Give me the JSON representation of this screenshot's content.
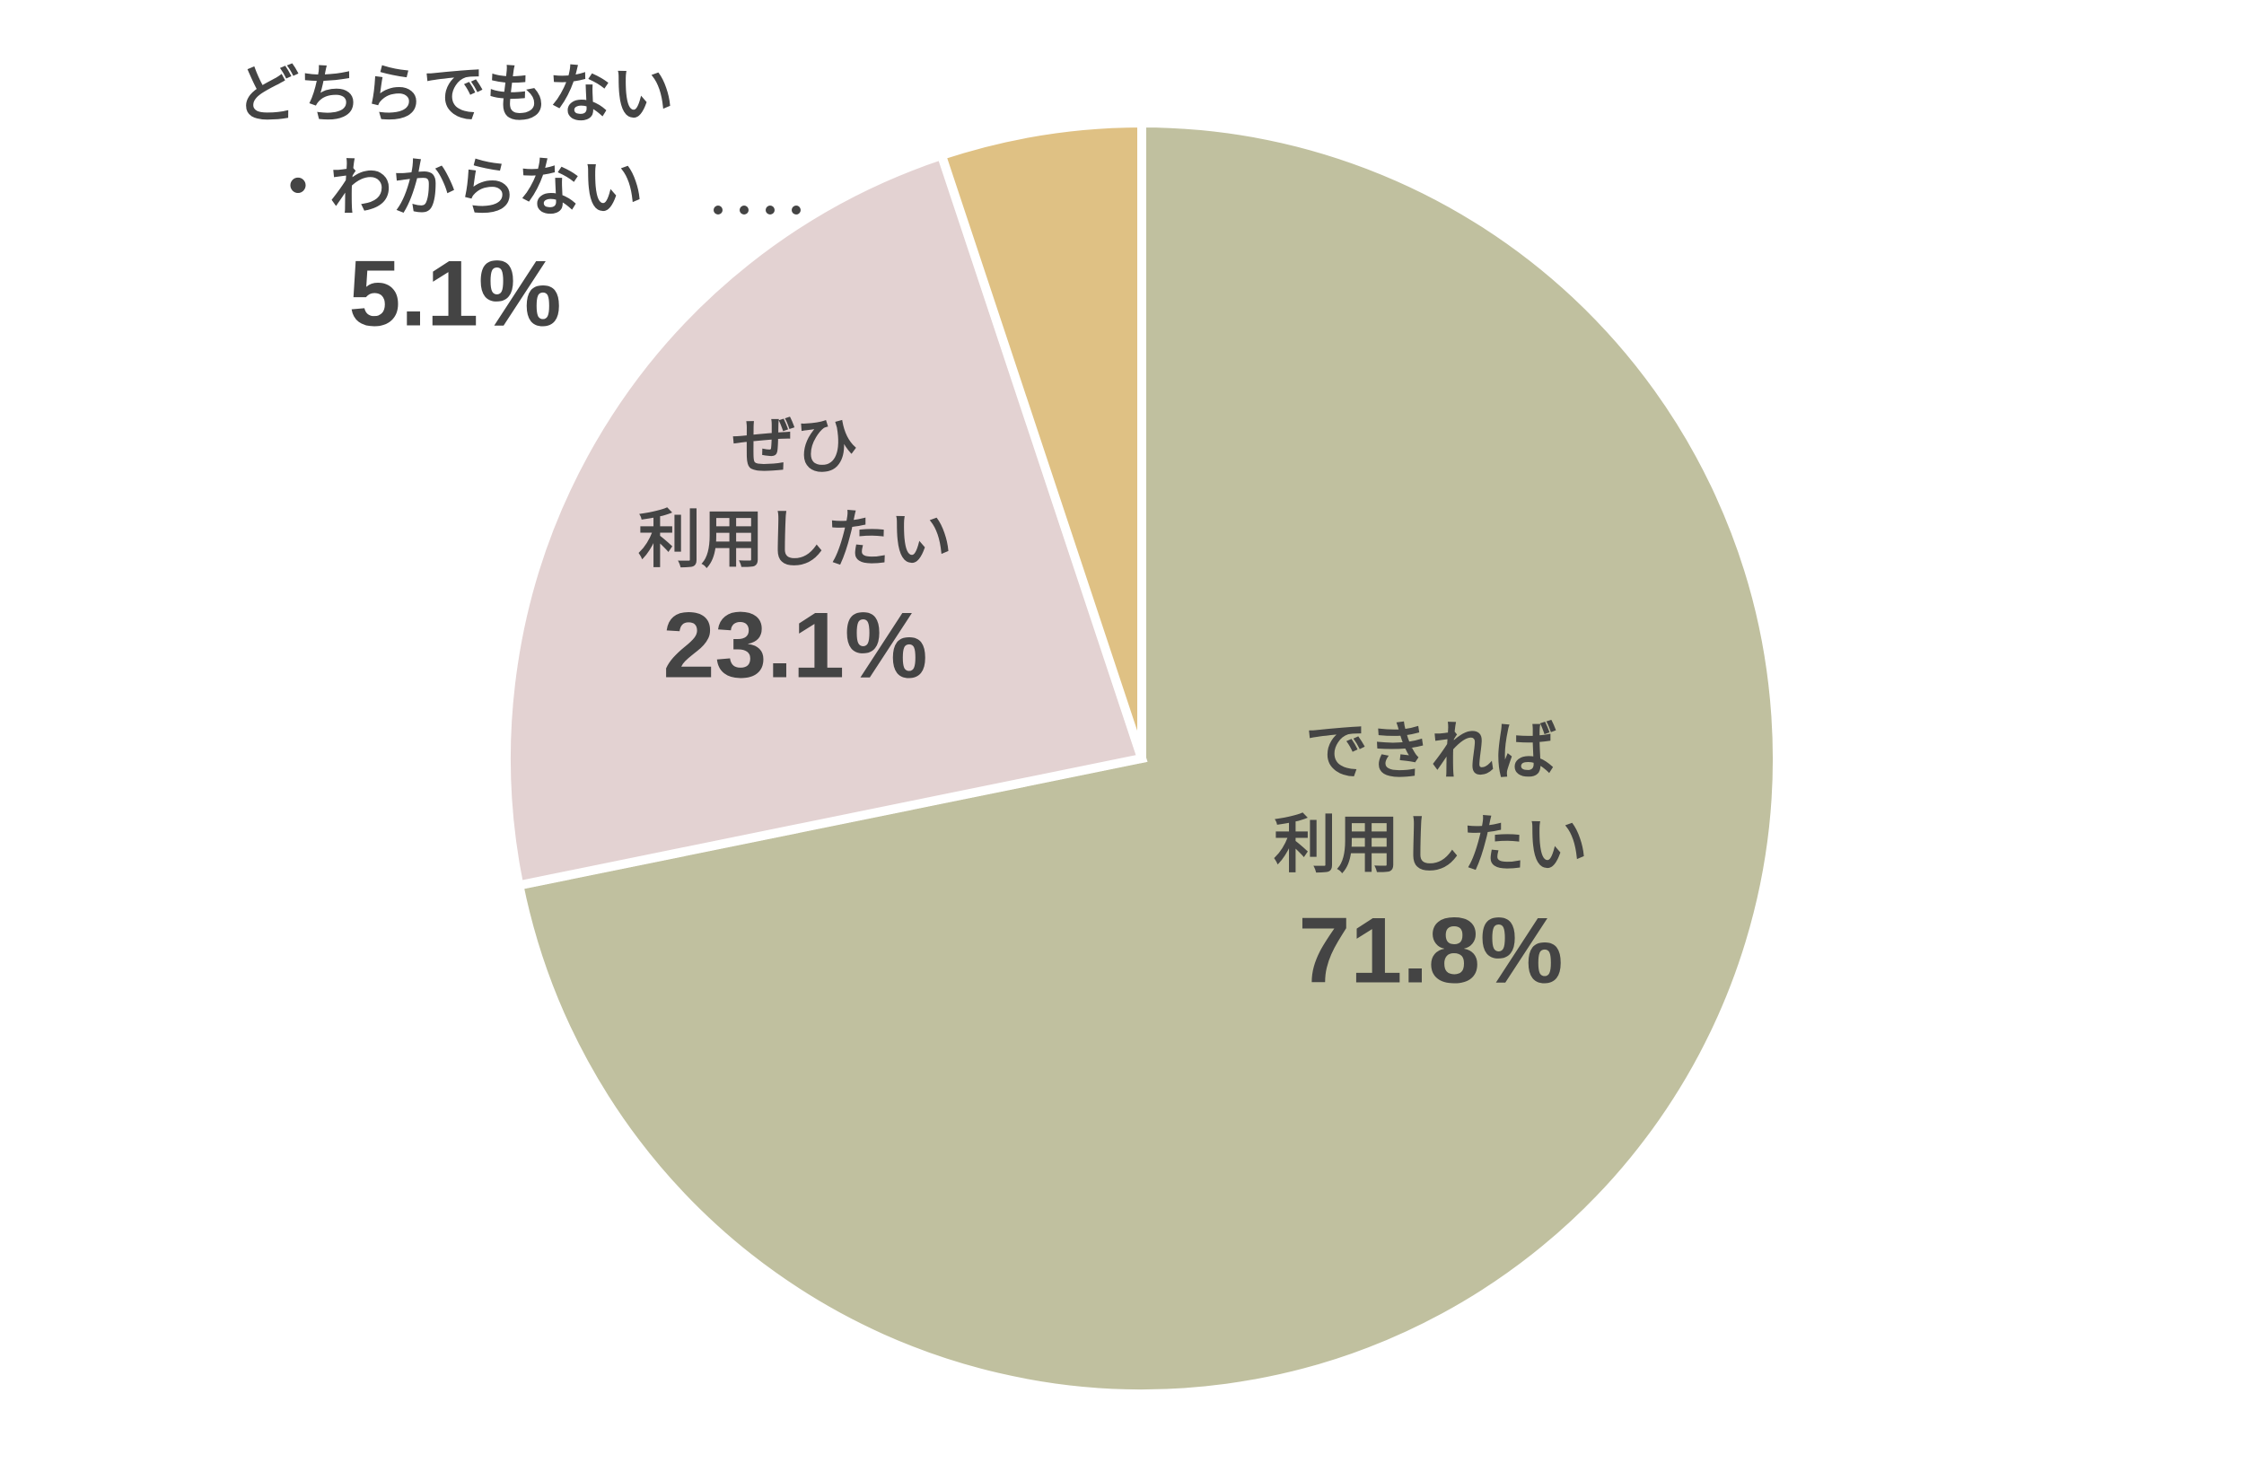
{
  "chart_data": {
    "type": "pie",
    "categories": [
      "できれば\n利用したい",
      "ぜひ\n利用したい",
      "どちらでもない\n・わからない"
    ],
    "values": [
      71.8,
      23.1,
      5.1
    ],
    "value_labels": [
      "71.8%",
      "23.1%",
      "5.1%"
    ],
    "colors": [
      "#c0c09f",
      "#e3d2d2",
      "#dfc184"
    ]
  }
}
